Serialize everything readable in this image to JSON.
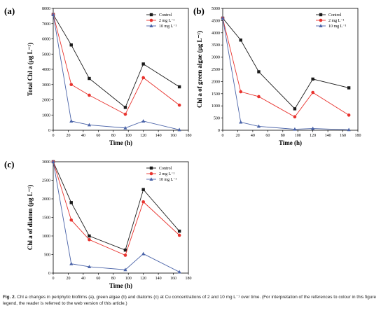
{
  "colors": {
    "control": "#1a1a1a",
    "two_mg": "#e8332e",
    "ten_mg": "#4a63a8"
  },
  "caption": {
    "label": "Fig. 2.",
    "text": "Chl a changes in periphytic biofilms (a), green algae (b) and diatoms (c) at Cu concentrations of 2 and 10 mg L⁻¹ over time. (For interpretation of the references to colour in this figure legend, the reader is referred to the web version of this article.)"
  },
  "chart_data": [
    {
      "type": "line",
      "panel_label": "(a)",
      "xlabel": "Time (h)",
      "ylabel": "Total Chl a (μg L⁻¹)",
      "xlim": [
        0,
        180
      ],
      "ylim": [
        0,
        8000
      ],
      "xticks": [
        0,
        20,
        40,
        60,
        80,
        100,
        120,
        140,
        160,
        180
      ],
      "yticks": [
        0,
        1000,
        2000,
        3000,
        4000,
        5000,
        6000,
        7000,
        8000
      ],
      "x": [
        0,
        24,
        48,
        96,
        120,
        168
      ],
      "legend_position": "top-right",
      "series": [
        {
          "name": "Control",
          "marker": "square",
          "values": [
            7600,
            5600,
            3400,
            1500,
            4350,
            2850
          ]
        },
        {
          "name": "2 mg L⁻¹",
          "marker": "circle",
          "values": [
            7600,
            3000,
            2300,
            1050,
            3450,
            1650
          ]
        },
        {
          "name": "10 mg L⁻¹",
          "marker": "triangle",
          "values": [
            7600,
            600,
            350,
            150,
            600,
            30
          ]
        }
      ]
    },
    {
      "type": "line",
      "panel_label": "(b)",
      "xlabel": "Time (h)",
      "ylabel": "Chl a of green algae (μg L⁻¹)",
      "xlim": [
        0,
        180
      ],
      "ylim": [
        0,
        5000
      ],
      "xticks": [
        0,
        20,
        40,
        60,
        80,
        100,
        120,
        140,
        160,
        180
      ],
      "yticks": [
        0,
        500,
        1000,
        1500,
        2000,
        2500,
        3000,
        3500,
        4000,
        4500,
        5000
      ],
      "x": [
        0,
        24,
        48,
        96,
        120,
        168
      ],
      "legend_position": "top-right",
      "series": [
        {
          "name": "Control",
          "marker": "square",
          "values": [
            4600,
            3700,
            2400,
            880,
            2100,
            1740
          ]
        },
        {
          "name": "2 mg L⁻¹",
          "marker": "circle",
          "values": [
            4600,
            1580,
            1380,
            550,
            1550,
            620
          ]
        },
        {
          "name": "10 mg L⁻¹",
          "marker": "triangle",
          "values": [
            4600,
            330,
            160,
            40,
            70,
            20
          ]
        }
      ]
    },
    {
      "type": "line",
      "panel_label": "(c)",
      "xlabel": "Time (h)",
      "ylabel": "Chl a of diatom (μg L⁻¹)",
      "xlim": [
        0,
        180
      ],
      "ylim": [
        0,
        3000
      ],
      "xticks": [
        0,
        20,
        40,
        60,
        80,
        100,
        120,
        140,
        160,
        180
      ],
      "yticks": [
        0,
        500,
        1000,
        1500,
        2000,
        2500,
        3000
      ],
      "x": [
        0,
        24,
        48,
        96,
        120,
        168
      ],
      "legend_position": "top-right",
      "series": [
        {
          "name": "Control",
          "marker": "square",
          "values": [
            3000,
            1900,
            1000,
            620,
            2250,
            1130
          ]
        },
        {
          "name": "2 mg L⁻¹",
          "marker": "circle",
          "values": [
            3000,
            1430,
            900,
            480,
            1920,
            1020
          ]
        },
        {
          "name": "10 mg L⁻¹",
          "marker": "triangle",
          "values": [
            3000,
            250,
            170,
            90,
            520,
            30
          ]
        }
      ]
    }
  ]
}
